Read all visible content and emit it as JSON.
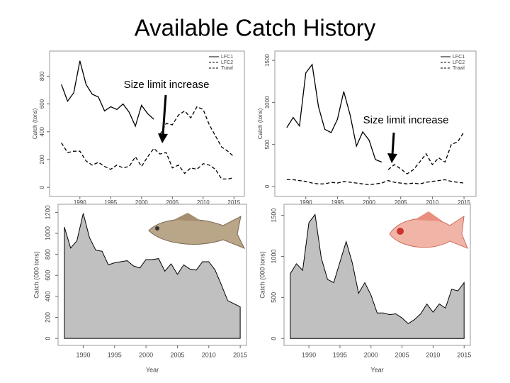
{
  "title": "Available Catch History",
  "annotations": [
    "Size limit increase",
    "Size limit increase"
  ],
  "chart_data": [
    {
      "type": "line",
      "y_label": "Catch (tons)",
      "legend": "topright",
      "x": [
        1987,
        1988,
        1989,
        1990,
        1991,
        1992,
        1993,
        1994,
        1995,
        1996,
        1997,
        1998,
        1999,
        2000,
        2001,
        2002,
        2003,
        2004,
        2005,
        2006,
        2007,
        2008,
        2009,
        2010,
        2011,
        2012,
        2013,
        2014,
        2015
      ],
      "xlim": [
        1986,
        2016
      ],
      "xticks": [
        1990,
        1995,
        2000,
        2005,
        2010,
        2015
      ],
      "ylim": [
        -30,
        950
      ],
      "yticks": [
        0,
        200,
        400,
        600,
        800
      ],
      "series": [
        {
          "name": "LFC1",
          "color": "#000000",
          "line_style": "solid",
          "values": [
            740,
            620,
            680,
            910,
            740,
            670,
            650,
            550,
            580,
            560,
            600,
            540,
            440,
            590,
            530,
            490,
            null,
            null,
            null,
            null,
            null,
            null,
            null,
            null,
            null,
            null,
            null,
            null,
            null
          ]
        },
        {
          "name": "LFC2",
          "color": "#000000",
          "line_style": "dashed",
          "values": [
            null,
            null,
            null,
            null,
            null,
            null,
            null,
            null,
            null,
            null,
            null,
            null,
            null,
            null,
            null,
            null,
            380,
            460,
            450,
            520,
            550,
            500,
            580,
            560,
            450,
            370,
            290,
            260,
            220
          ]
        },
        {
          "name": "Trawl",
          "color": "#000000",
          "line_style": "dashed",
          "values": [
            320,
            250,
            260,
            260,
            190,
            160,
            180,
            150,
            130,
            160,
            140,
            150,
            220,
            150,
            220,
            280,
            240,
            250,
            140,
            160,
            100,
            140,
            130,
            170,
            160,
            130,
            60,
            60,
            70
          ]
        }
      ]
    },
    {
      "type": "line",
      "y_label": "Catch (tons)",
      "legend": "topright",
      "x": [
        1987,
        1988,
        1989,
        1990,
        1991,
        1992,
        1993,
        1994,
        1995,
        1996,
        1997,
        1998,
        1999,
        2000,
        2001,
        2002,
        2003,
        2004,
        2005,
        2006,
        2007,
        2008,
        2009,
        2010,
        2011,
        2012,
        2013,
        2014,
        2015
      ],
      "xlim": [
        1986,
        2016
      ],
      "xticks": [
        1990,
        1995,
        2000,
        2005,
        2010,
        2015
      ],
      "ylim": [
        -60,
        1560
      ],
      "yticks": [
        0,
        500,
        1000,
        1500
      ],
      "series": [
        {
          "name": "LFC1",
          "color": "#000000",
          "line_style": "solid",
          "values": [
            700,
            820,
            720,
            1350,
            1450,
            950,
            680,
            640,
            800,
            1130,
            850,
            480,
            650,
            550,
            320,
            290,
            null,
            null,
            null,
            null,
            null,
            null,
            null,
            null,
            null,
            null,
            null,
            null,
            null
          ]
        },
        {
          "name": "LFC2",
          "color": "#000000",
          "line_style": "dashed",
          "values": [
            null,
            null,
            null,
            null,
            null,
            null,
            null,
            null,
            null,
            null,
            null,
            null,
            null,
            null,
            null,
            null,
            200,
            260,
            210,
            150,
            200,
            290,
            390,
            260,
            340,
            290,
            500,
            530,
            650
          ]
        },
        {
          "name": "Trawl",
          "color": "#000000",
          "line_style": "dashed",
          "values": [
            80,
            80,
            70,
            60,
            40,
            30,
            30,
            50,
            40,
            60,
            50,
            40,
            30,
            20,
            30,
            40,
            70,
            50,
            40,
            30,
            40,
            30,
            50,
            60,
            70,
            80,
            60,
            50,
            40
          ]
        }
      ]
    },
    {
      "type": "area",
      "y_label": "Catch (000 tons)",
      "x_label": "Year",
      "color": "#c0c0c0",
      "x": [
        1987,
        1988,
        1989,
        1990,
        1991,
        1992,
        1993,
        1994,
        1995,
        1996,
        1997,
        1998,
        1999,
        2000,
        2001,
        2002,
        2003,
        2004,
        2005,
        2006,
        2007,
        2008,
        2009,
        2010,
        2011,
        2012,
        2013,
        2014,
        2015
      ],
      "values": [
        1060,
        860,
        930,
        1190,
        960,
        840,
        830,
        700,
        720,
        730,
        740,
        690,
        670,
        750,
        750,
        760,
        640,
        710,
        610,
        700,
        660,
        650,
        730,
        730,
        650,
        510,
        360,
        330,
        300
      ],
      "xlim": [
        1986,
        2016
      ],
      "xticks": [
        1990,
        1995,
        2000,
        2005,
        2010,
        2015
      ],
      "ylim": [
        -40,
        1250
      ],
      "yticks": [
        0,
        200,
        400,
        600,
        800,
        1000,
        1200
      ]
    },
    {
      "type": "area",
      "y_label": "Catch (000 tons)",
      "x_label": "Year",
      "color": "#c0c0c0",
      "x": [
        1987,
        1988,
        1989,
        1990,
        1991,
        1992,
        1993,
        1994,
        1995,
        1996,
        1997,
        1998,
        1999,
        2000,
        2001,
        2002,
        2003,
        2004,
        2005,
        2006,
        2007,
        2008,
        2009,
        2010,
        2011,
        2012,
        2013,
        2014,
        2015
      ],
      "values": [
        790,
        910,
        830,
        1410,
        1510,
        980,
        720,
        680,
        930,
        1180,
        920,
        550,
        680,
        530,
        310,
        310,
        290,
        300,
        250,
        180,
        230,
        300,
        420,
        320,
        420,
        370,
        600,
        580,
        680
      ],
      "xlim": [
        1986,
        2016
      ],
      "xticks": [
        1990,
        1995,
        2000,
        2005,
        2010,
        2015
      ],
      "ylim": [
        -50,
        1600
      ],
      "yticks": [
        0,
        500,
        1000,
        1500
      ]
    }
  ]
}
